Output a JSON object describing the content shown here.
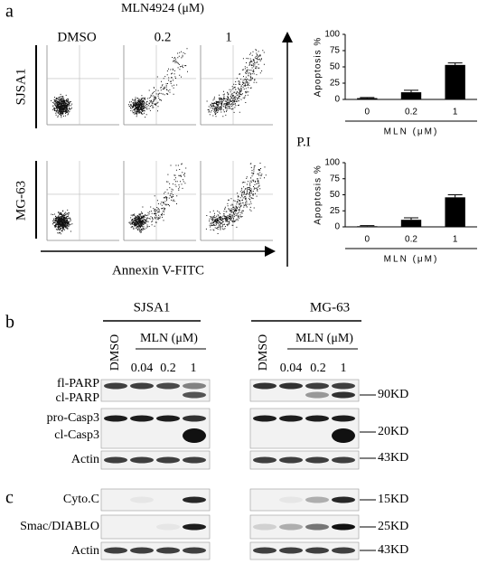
{
  "chart_data": [
    {
      "type": "bar",
      "ylabel": "Apoptosis %",
      "xlabel": "MLN (μM)",
      "categories": [
        "0",
        "0.2",
        "1"
      ],
      "values": [
        2,
        11,
        53
      ],
      "errors": [
        1,
        3,
        3
      ],
      "ylim": [
        0,
        100
      ],
      "yticks": [
        0,
        25,
        50,
        75,
        100
      ],
      "color": "#000000"
    },
    {
      "type": "bar",
      "ylabel": "Apoptosis %",
      "xlabel": "MLN (μM)",
      "categories": [
        "0",
        "0.2",
        "1"
      ],
      "values": [
        1,
        11,
        46
      ],
      "errors": [
        1,
        3,
        4
      ],
      "ylim": [
        0,
        100
      ],
      "yticks": [
        0,
        25,
        50,
        75,
        100
      ],
      "color": "#000000"
    }
  ],
  "panel_a": {
    "label": "a",
    "title": "MLN4924 (μM)",
    "columns": [
      "DMSO",
      "0.2",
      "1"
    ],
    "rows": [
      "SJSA1",
      "MG-63"
    ],
    "x_axis": "Annexin V-FITC",
    "y_axis": "P.I"
  },
  "panel_b": {
    "label": "b",
    "cell_lines": [
      "SJSA1",
      "MG-63"
    ],
    "control": "DMSO",
    "treatment": "MLN (μM)",
    "doses": [
      "0.04",
      "0.2",
      "1"
    ],
    "rows": [
      "fl-PARP",
      "cl-PARP",
      "pro-Casp3",
      "cl-Casp3",
      "Actin"
    ],
    "sizes": [
      "90KD",
      "20KD",
      "43KD"
    ]
  },
  "panel_c": {
    "label": "c",
    "rows": [
      "Cyto.C",
      "Smac/DIABLO",
      "Actin"
    ],
    "sizes": [
      "15KD",
      "25KD",
      "43KD"
    ]
  }
}
